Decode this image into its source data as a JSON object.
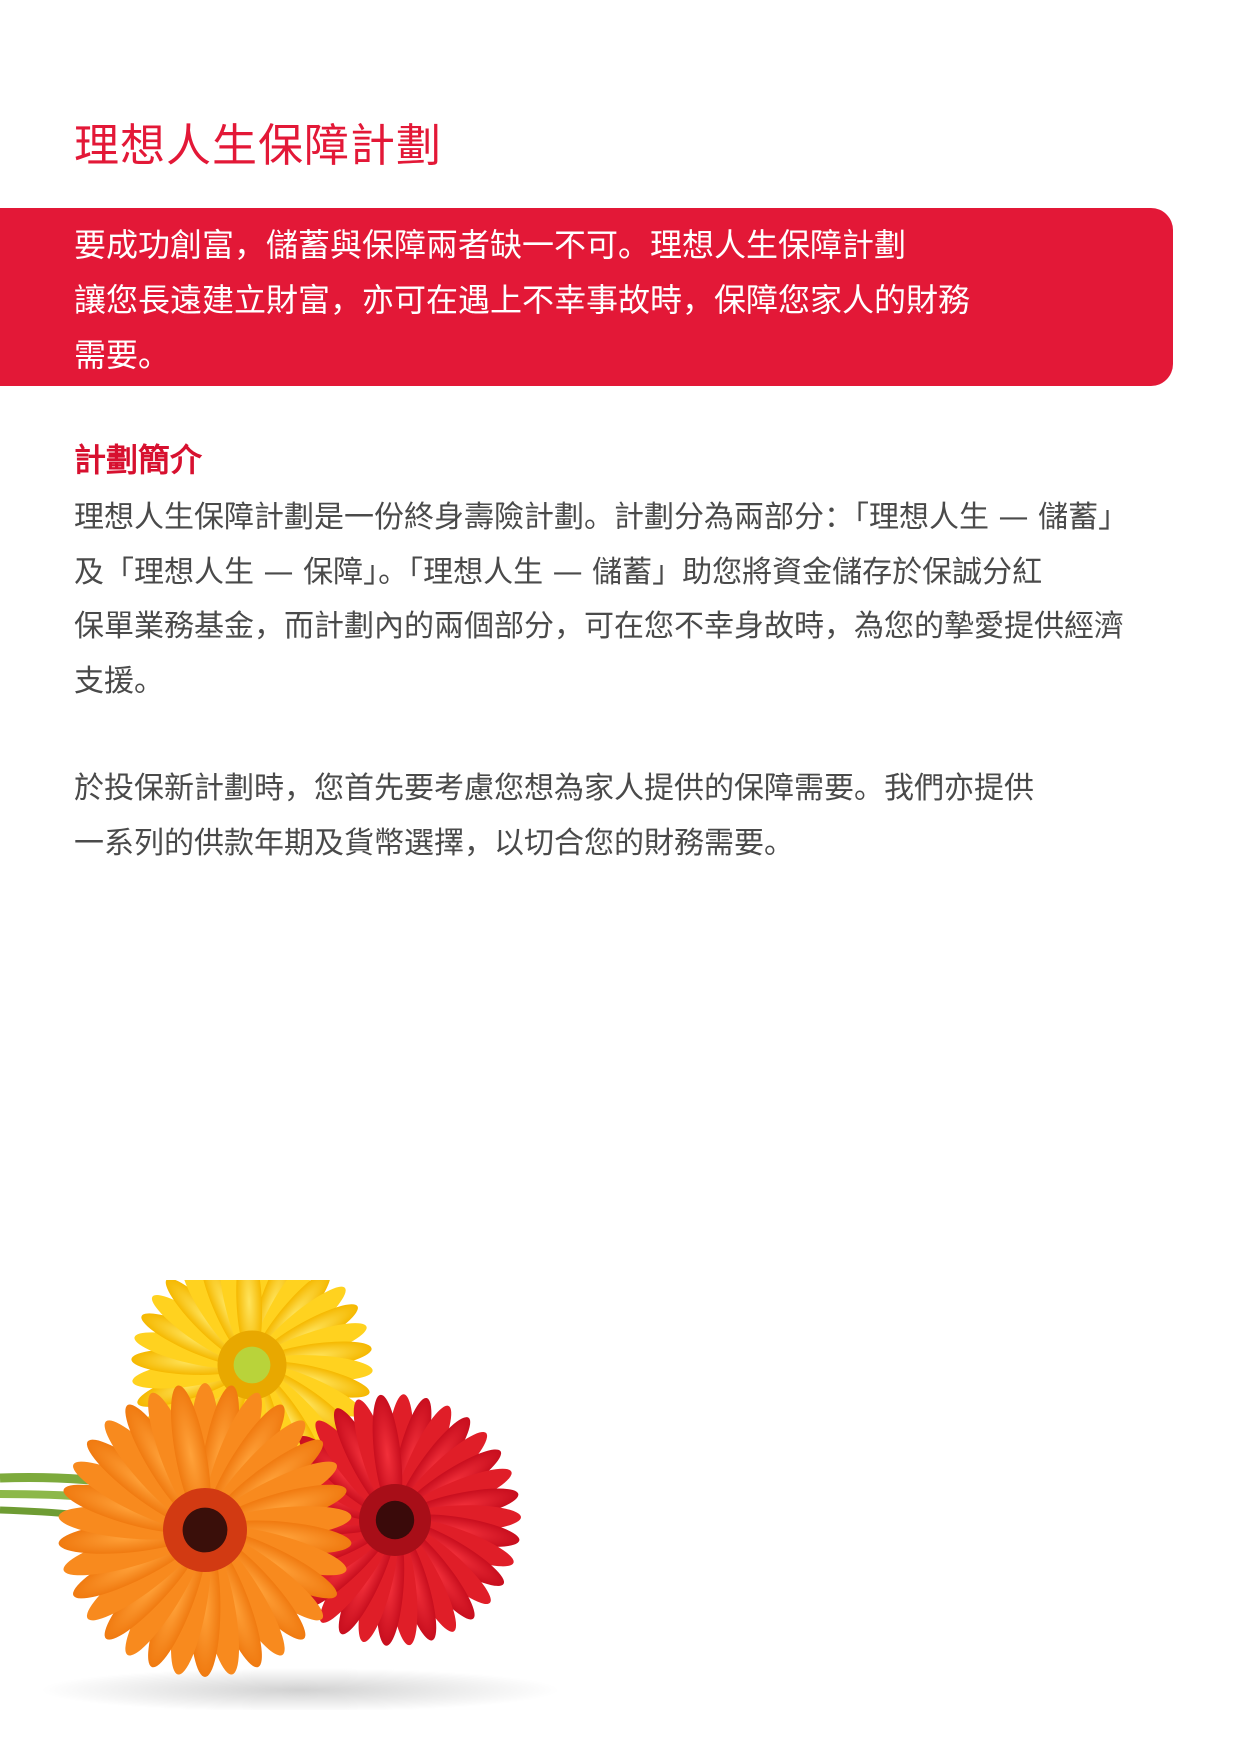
{
  "colors": {
    "brand_red": "#E31837",
    "heading_red": "#D7102F",
    "body_text": "#4A4A4A",
    "banner_text": "#FFFFFF"
  },
  "document": {
    "title": "理想人生保障計劃",
    "intro_lines": [
      "要成功創富，儲蓄與保障兩者缺一不可。理想人生保障計劃",
      "讓您長遠建立財富，亦可在遇上不幸事故時，保障您家人的財務",
      "需要。"
    ],
    "section": {
      "heading": "計劃簡介",
      "paragraph1_lines": [
        "理想人生保障計劃是一份終身壽險計劃。計劃分為兩部分：「理想人生 — 儲蓄」",
        "及「理想人生 — 保障」。「理想人生 — 儲蓄」助您將資金儲存於保誠分紅",
        "保單業務基金，而計劃內的兩個部分，可在您不幸身故時，為您的摯愛提供經濟",
        "支援。"
      ],
      "paragraph2_lines": [
        "於投保新計劃時，您首先要考慮您想為家人提供的保障需要。我們亦提供",
        "一系列的供款年期及貨幣選擇，以切合您的財務需要。"
      ]
    },
    "illustration_icon": "gerbera-flowers-illustration"
  }
}
